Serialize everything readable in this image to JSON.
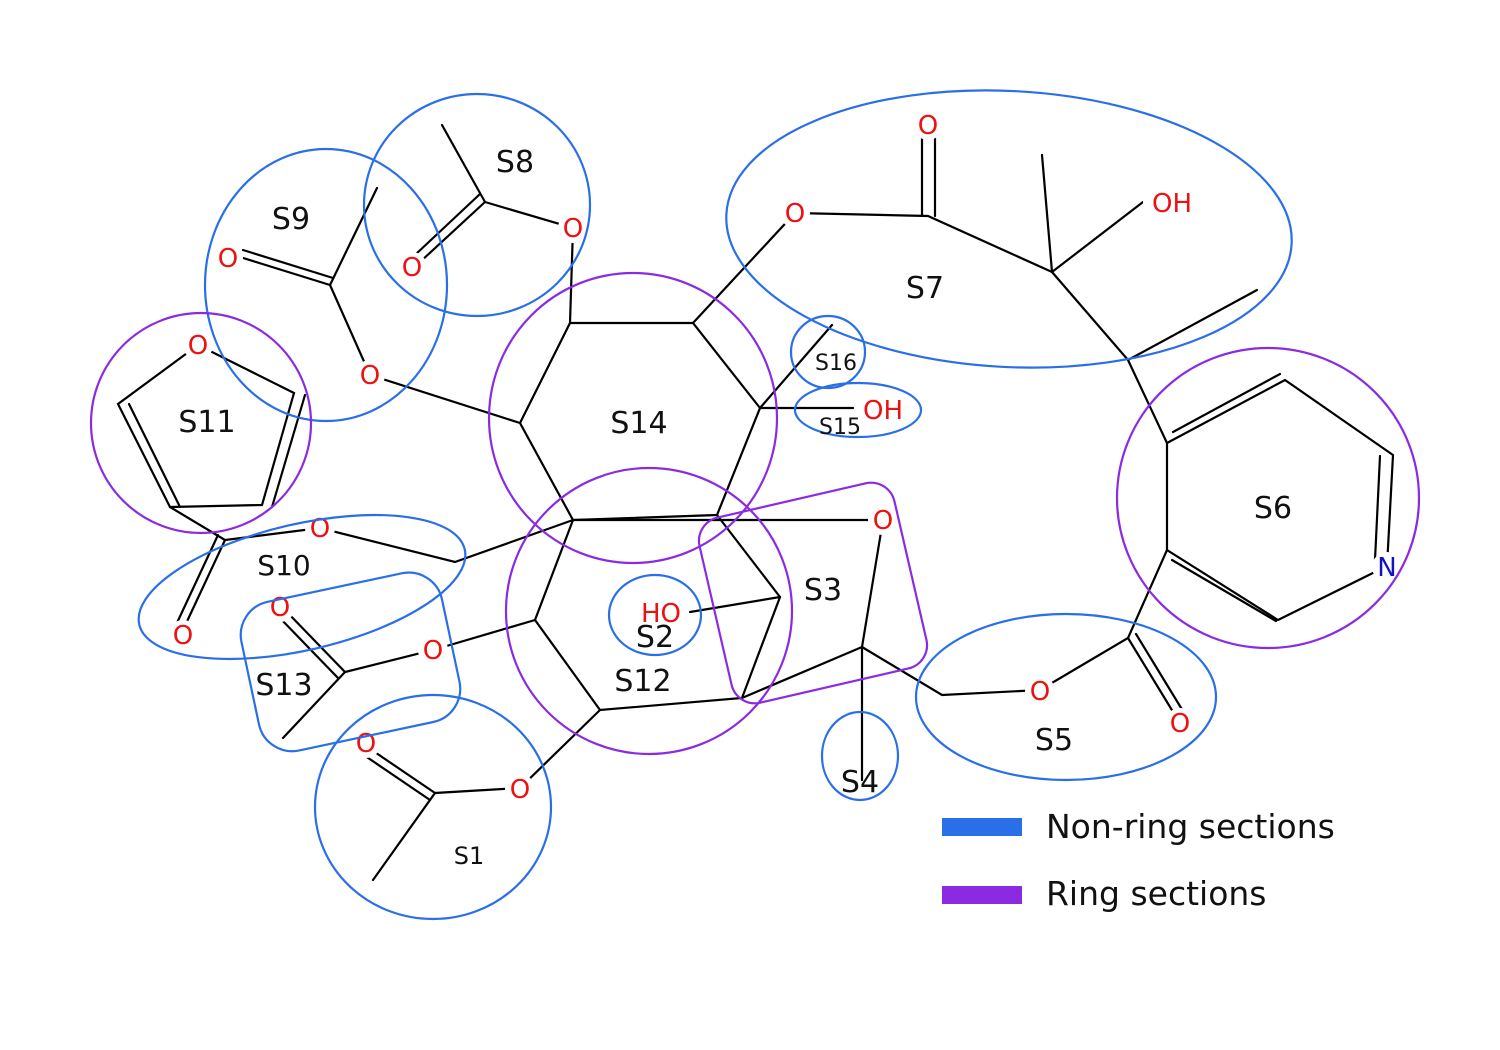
{
  "colors": {
    "non_ring": "#2a6fe8",
    "ring": "#8a2be2",
    "oxygen": "#ee1111",
    "nitrogen": "#1111cc",
    "bond": "#000000"
  },
  "atoms": {
    "o1": "O",
    "o2": "O",
    "o3": "O",
    "o4": "O",
    "o5": "O",
    "o6": "O",
    "o7": "O",
    "o8": "O",
    "o9": "O",
    "o10": "O",
    "o11": "O",
    "o12": "O",
    "o13": "O",
    "o14": "O",
    "o15": "O",
    "o16": "O",
    "o17": "O",
    "oh1": "OH",
    "oh2": "OH",
    "ho1": "HO",
    "n1": "N"
  },
  "sections": {
    "s1": "S1",
    "s2": "S2",
    "s3": "S3",
    "s4": "S4",
    "s5": "S5",
    "s6": "S6",
    "s7": "S7",
    "s8": "S8",
    "s9": "S9",
    "s10": "S10",
    "s11": "S11",
    "s12": "S12",
    "s13": "S13",
    "s14": "S14",
    "s15": "S15",
    "s16": "S16"
  },
  "legend": {
    "non_ring": "Non-ring sections",
    "ring": "Ring sections"
  }
}
